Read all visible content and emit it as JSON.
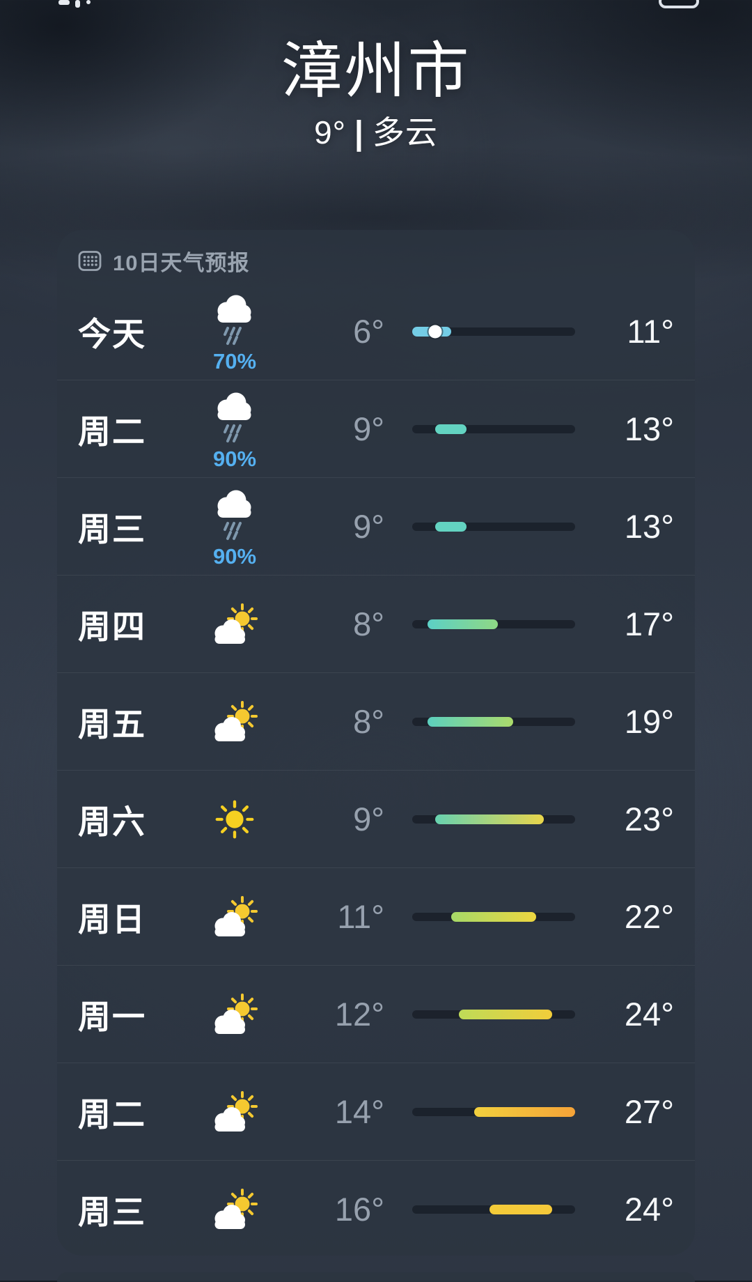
{
  "header": {
    "city": "漳州市",
    "current_temp": "9°",
    "separator": "|",
    "condition": "多云"
  },
  "forecast": {
    "title": "10日天气预报",
    "title_icon": "calendar-icon",
    "scale": {
      "min": 6,
      "max": 27,
      "current": 9
    },
    "days": [
      {
        "day": "今天",
        "icon": "rainy",
        "precip": "70%",
        "low": 6,
        "high": 11,
        "low_label": "6°",
        "high_label": "11°",
        "bar": {
          "from": "#74cde6",
          "to": "#74cde6"
        },
        "show_dot": true
      },
      {
        "day": "周二",
        "icon": "rainy",
        "precip": "90%",
        "low": 9,
        "high": 13,
        "low_label": "9°",
        "high_label": "13°",
        "bar": {
          "from": "#63d3c1",
          "to": "#63d3c1"
        }
      },
      {
        "day": "周三",
        "icon": "rainy",
        "precip": "90%",
        "low": 9,
        "high": 13,
        "low_label": "9°",
        "high_label": "13°",
        "bar": {
          "from": "#63d3c1",
          "to": "#63d3c1"
        }
      },
      {
        "day": "周四",
        "icon": "partly-sunny",
        "low": 8,
        "high": 17,
        "low_label": "8°",
        "high_label": "17°",
        "bar": {
          "from": "#5cd0c6",
          "to": "#8fd884"
        }
      },
      {
        "day": "周五",
        "icon": "partly-sunny",
        "low": 8,
        "high": 19,
        "low_label": "8°",
        "high_label": "19°",
        "bar": {
          "from": "#5cd0bf",
          "to": "#abdb6b"
        }
      },
      {
        "day": "周六",
        "icon": "sunny",
        "low": 9,
        "high": 23,
        "low_label": "9°",
        "high_label": "23°",
        "bar": {
          "from": "#67d2b0",
          "to": "#e9d54b"
        }
      },
      {
        "day": "周日",
        "icon": "partly-sunny",
        "low": 11,
        "high": 22,
        "low_label": "11°",
        "high_label": "22°",
        "bar": {
          "from": "#a6d968",
          "to": "#edd640"
        }
      },
      {
        "day": "周一",
        "icon": "partly-sunny",
        "low": 12,
        "high": 24,
        "low_label": "12°",
        "high_label": "24°",
        "bar": {
          "from": "#bedb58",
          "to": "#f2cd3a"
        }
      },
      {
        "day": "周二",
        "icon": "partly-sunny",
        "low": 14,
        "high": 27,
        "low_label": "14°",
        "high_label": "27°",
        "bar": {
          "from": "#f2d03e",
          "to": "#f5a338"
        }
      },
      {
        "day": "周三",
        "icon": "partly-sunny",
        "low": 16,
        "high": 24,
        "low_label": "16°",
        "high_label": "24°",
        "bar": {
          "from": "#f3cb39",
          "to": "#f5c93a"
        }
      }
    ]
  }
}
